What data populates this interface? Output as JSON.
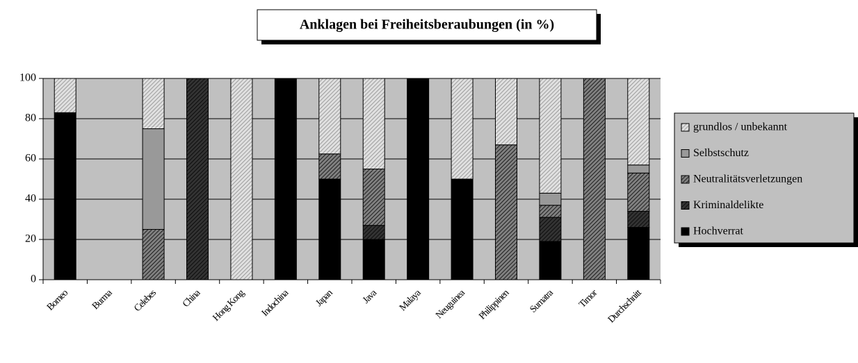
{
  "chart_data": {
    "type": "stacked_bar",
    "title": "Anklagen bei Freiheitsberaubungen (in %)",
    "categories": [
      "Borneo",
      "Burma",
      "Celebes",
      "China",
      "Hong Kong",
      "Indochina",
      "Japan",
      "Java",
      "Malaya",
      "Neuguinea",
      "Philippinen",
      "Sumatra",
      "Timor",
      "Durchschnitt"
    ],
    "series": [
      {
        "name": "Hochverrat",
        "color": "#000000",
        "hatch": false,
        "values": [
          83,
          0,
          0,
          0,
          0,
          100,
          50,
          20,
          100,
          50,
          0,
          19,
          0,
          26
        ]
      },
      {
        "name": "Kriminaldelikte",
        "color": "#333333",
        "hatch": true,
        "values": [
          0,
          0,
          0,
          100,
          0,
          0,
          0,
          7,
          0,
          0,
          0,
          12,
          0,
          8
        ]
      },
      {
        "name": "Neutralitätsverletzungen",
        "color": "#808080",
        "hatch": true,
        "values": [
          0,
          0,
          25,
          0,
          0,
          0,
          12.5,
          28,
          0,
          0,
          67,
          6,
          100,
          19
        ]
      },
      {
        "name": "Selbstschutz",
        "color": "#999999",
        "hatch": false,
        "values": [
          0,
          0,
          50,
          0,
          0,
          0,
          0,
          0,
          0,
          0,
          0,
          6,
          0,
          4
        ]
      },
      {
        "name": "grundlos / unbekannt",
        "color": "#e0e0e0",
        "hatch": true,
        "values": [
          17,
          0,
          25,
          0,
          100,
          0,
          37.5,
          45,
          0,
          50,
          33,
          57,
          0,
          43
        ]
      }
    ],
    "ylim": [
      0,
      100
    ],
    "yticks": [
      0,
      20,
      40,
      60,
      80,
      100
    ],
    "grid": true,
    "legend": "right"
  }
}
